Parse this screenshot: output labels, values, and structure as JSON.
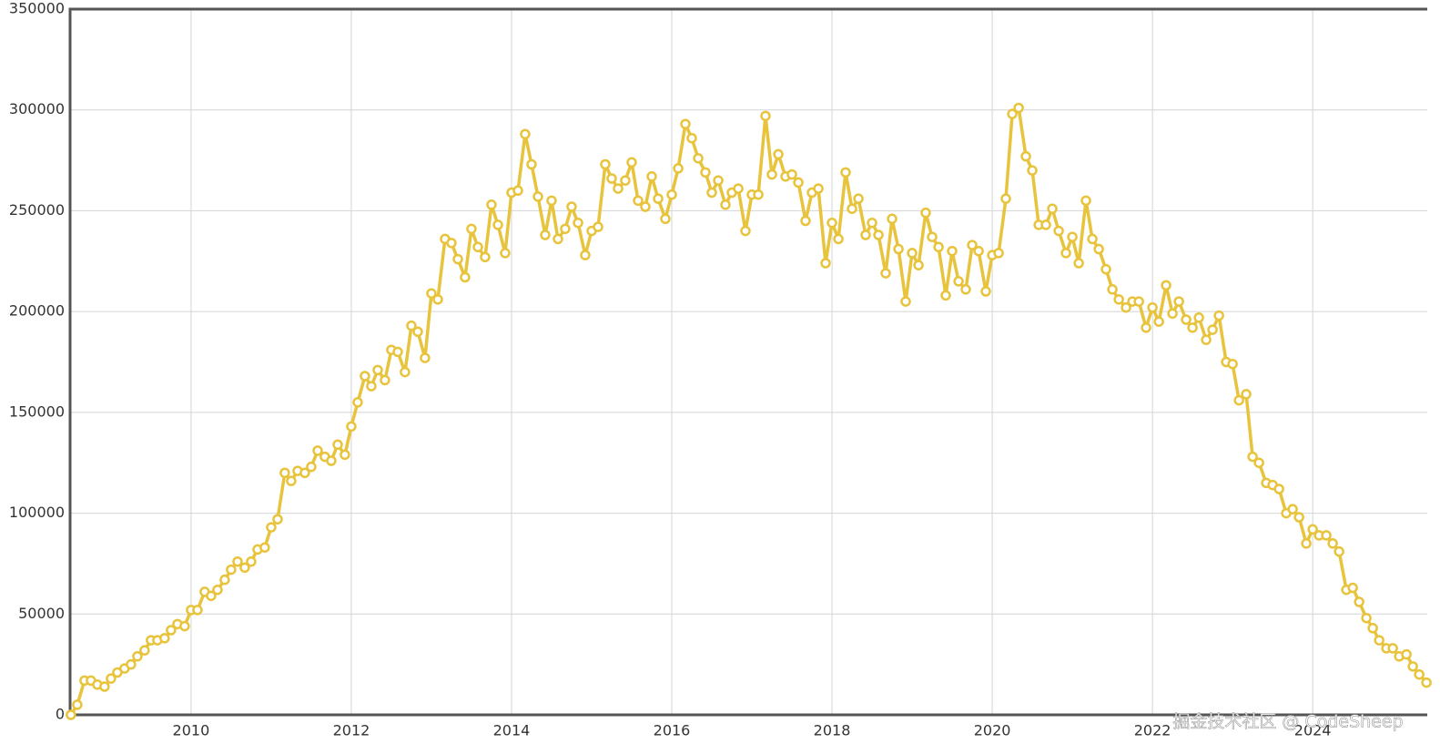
{
  "chart_data": {
    "type": "line",
    "x": [
      2008.5,
      2008.58,
      2008.67,
      2008.75,
      2008.83,
      2008.92,
      2009,
      2009.08,
      2009.17,
      2009.25,
      2009.33,
      2009.42,
      2009.5,
      2009.58,
      2009.67,
      2009.75,
      2009.83,
      2009.92,
      2010,
      2010.08,
      2010.17,
      2010.25,
      2010.33,
      2010.42,
      2010.5,
      2010.58,
      2010.67,
      2010.75,
      2010.83,
      2010.92,
      2011,
      2011.08,
      2011.17,
      2011.25,
      2011.33,
      2011.42,
      2011.5,
      2011.58,
      2011.67,
      2011.75,
      2011.83,
      2011.92,
      2012,
      2012.08,
      2012.17,
      2012.25,
      2012.33,
      2012.42,
      2012.5,
      2012.58,
      2012.67,
      2012.75,
      2012.83,
      2012.92,
      2013,
      2013.08,
      2013.17,
      2013.25,
      2013.33,
      2013.42,
      2013.5,
      2013.58,
      2013.67,
      2013.75,
      2013.83,
      2013.92,
      2014,
      2014.08,
      2014.17,
      2014.25,
      2014.33,
      2014.42,
      2014.5,
      2014.58,
      2014.67,
      2014.75,
      2014.83,
      2014.92,
      2015,
      2015.08,
      2015.17,
      2015.25,
      2015.33,
      2015.42,
      2015.5,
      2015.58,
      2015.67,
      2015.75,
      2015.83,
      2015.92,
      2016,
      2016.08,
      2016.17,
      2016.25,
      2016.33,
      2016.42,
      2016.5,
      2016.58,
      2016.67,
      2016.75,
      2016.83,
      2016.92,
      2017,
      2017.08,
      2017.17,
      2017.25,
      2017.33,
      2017.42,
      2017.5,
      2017.58,
      2017.67,
      2017.75,
      2017.83,
      2017.92,
      2018,
      2018.08,
      2018.17,
      2018.25,
      2018.33,
      2018.42,
      2018.5,
      2018.58,
      2018.67,
      2018.75,
      2018.83,
      2018.92,
      2019,
      2019.08,
      2019.17,
      2019.25,
      2019.33,
      2019.42,
      2019.5,
      2019.58,
      2019.67,
      2019.75,
      2019.83,
      2019.92,
      2020,
      2020.08,
      2020.17,
      2020.25,
      2020.33,
      2020.42,
      2020.5,
      2020.58,
      2020.67,
      2020.75,
      2020.83,
      2020.92,
      2021,
      2021.08,
      2021.17,
      2021.25,
      2021.33,
      2021.42,
      2021.5,
      2021.58,
      2021.67,
      2021.75,
      2021.83,
      2021.92,
      2022,
      2022.08,
      2022.17,
      2022.25,
      2022.33,
      2022.42,
      2022.5,
      2022.58,
      2022.67,
      2022.75,
      2022.83,
      2022.92,
      2023,
      2023.08,
      2023.17,
      2023.25,
      2023.33,
      2023.42,
      2023.5,
      2023.58,
      2023.67,
      2023.75,
      2023.83,
      2023.92,
      2024,
      2024.08,
      2024.17,
      2024.25,
      2024.33,
      2024.42,
      2024.5,
      2024.58,
      2024.67,
      2024.75,
      2024.83,
      2024.92,
      2025,
      2025.08,
      2025.17,
      2025.25,
      2025.33,
      2025.42
    ],
    "series": [
      {
        "color": "#e8c33c",
        "values": [
          0,
          5000,
          17000,
          17000,
          15000,
          14000,
          18000,
          21000,
          23000,
          25000,
          29000,
          32000,
          37000,
          37000,
          38000,
          42000,
          45000,
          44000,
          52000,
          52000,
          61000,
          59000,
          62000,
          67000,
          72000,
          76000,
          73000,
          76000,
          82000,
          83000,
          93000,
          97000,
          120000,
          116000,
          121000,
          120000,
          123000,
          131000,
          128000,
          126000,
          134000,
          129000,
          143000,
          155000,
          168000,
          163000,
          171000,
          166000,
          181000,
          180000,
          170000,
          193000,
          190000,
          177000,
          209000,
          206000,
          236000,
          234000,
          226000,
          217000,
          241000,
          232000,
          227000,
          253000,
          243000,
          229000,
          259000,
          260000,
          288000,
          273000,
          257000,
          238000,
          255000,
          236000,
          241000,
          252000,
          244000,
          228000,
          240000,
          242000,
          273000,
          266000,
          261000,
          265000,
          274000,
          255000,
          252000,
          267000,
          256000,
          246000,
          258000,
          271000,
          293000,
          286000,
          276000,
          269000,
          259000,
          265000,
          253000,
          259000,
          261000,
          240000,
          258000,
          258000,
          297000,
          268000,
          278000,
          267000,
          268000,
          264000,
          245000,
          259000,
          261000,
          224000,
          244000,
          236000,
          269000,
          251000,
          256000,
          238000,
          244000,
          238000,
          219000,
          246000,
          231000,
          205000,
          229000,
          223000,
          249000,
          237000,
          232000,
          208000,
          230000,
          215000,
          211000,
          233000,
          230000,
          210000,
          228000,
          229000,
          256000,
          298000,
          301000,
          277000,
          270000,
          243000,
          243000,
          251000,
          240000,
          229000,
          237000,
          224000,
          255000,
          236000,
          231000,
          221000,
          211000,
          206000,
          202000,
          205000,
          205000,
          192000,
          202000,
          195000,
          213000,
          199000,
          205000,
          196000,
          192000,
          197000,
          186000,
          191000,
          198000,
          175000,
          174000,
          156000,
          159000,
          128000,
          125000,
          115000,
          114000,
          112000,
          100000,
          102000,
          98000,
          85000,
          92000,
          89000,
          89000,
          85000,
          81000,
          62000,
          63000,
          56000,
          48000,
          43000,
          37000,
          33000,
          33000,
          29000,
          30000,
          24000,
          20000,
          16000
        ]
      }
    ],
    "xlim": [
      2008.49,
      2025.43
    ],
    "ylim": [
      0,
      350000
    ],
    "xticks": [
      2010,
      2012,
      2014,
      2016,
      2018,
      2020,
      2022,
      2024
    ],
    "yticks": [
      0,
      50000,
      100000,
      150000,
      200000,
      250000,
      300000,
      350000
    ],
    "grid": true,
    "watermark": "掘金技术社区 @ CodeSheep"
  }
}
